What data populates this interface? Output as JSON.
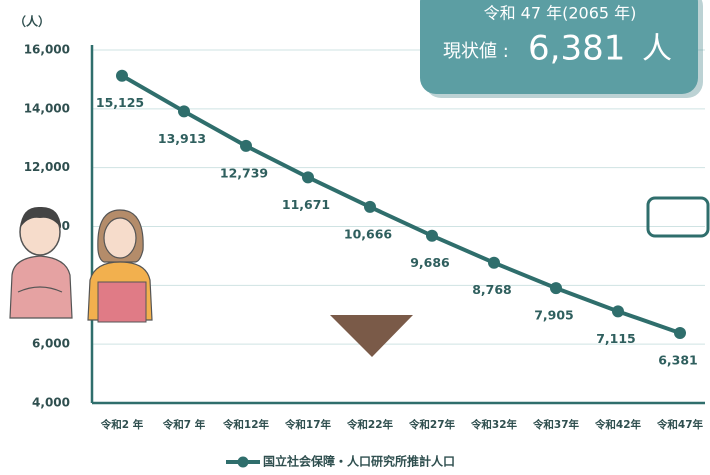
{
  "chart_data": {
    "type": "line",
    "y_unit": "（人）",
    "categories": [
      "令和2 年",
      "令和7 年",
      "令和12年",
      "令和17年",
      "令和22年",
      "令和27年",
      "令和32年",
      "令和37年",
      "令和42年",
      "令和47年"
    ],
    "series": [
      {
        "name": "国立社会保障・人口研究所推計人口",
        "color": "#2f6e6c",
        "values": [
          15125,
          13913,
          12739,
          11671,
          10666,
          9686,
          8768,
          7905,
          7115,
          6381
        ],
        "value_labels": [
          "15,125",
          "13,913",
          "12,739",
          "11,671",
          "10,666",
          "9,686",
          "8,768",
          "7,905",
          "7,115",
          "6,381"
        ]
      }
    ],
    "ylim": [
      4000,
      16000
    ],
    "yticks": [
      {
        "value": 4000,
        "label": "4,000"
      },
      {
        "value": 6000,
        "label": "6,000"
      },
      {
        "value": 8000,
        "label": "8,000"
      },
      {
        "value": 10000,
        "label": "10,000"
      },
      {
        "value": 12000,
        "label": "12,000"
      },
      {
        "value": 14000,
        "label": "14,000"
      },
      {
        "value": 16000,
        "label": "16,000"
      }
    ],
    "grid": true
  },
  "callout": {
    "period": "令和 47 年(2065 年)",
    "label": "現状値 :",
    "value": "6,381",
    "unit": "人"
  }
}
